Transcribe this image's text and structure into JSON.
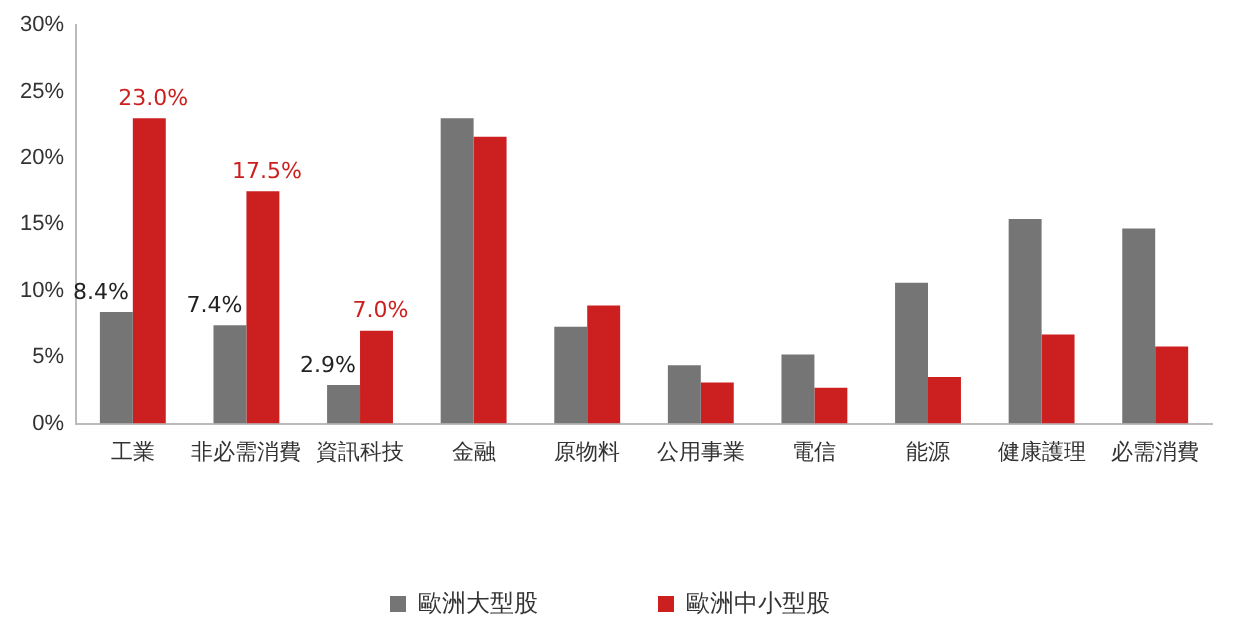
{
  "chart_data": {
    "type": "bar",
    "categories": [
      "工業",
      "非必需消費",
      "資訊科技",
      "金融",
      "原物料",
      "公用事業",
      "電信",
      "能源",
      "健康護理",
      "必需消費"
    ],
    "series": [
      {
        "name": "歐洲大型股",
        "color": "#757575",
        "values": [
          8.4,
          7.4,
          2.9,
          23.0,
          7.3,
          4.4,
          5.2,
          10.6,
          15.4,
          14.7
        ],
        "value_labels": [
          "8.4%",
          "7.4%",
          "2.9%",
          null,
          null,
          null,
          null,
          null,
          null,
          null
        ]
      },
      {
        "name": "歐洲中小型股",
        "color": "#cc2020",
        "values": [
          23.0,
          17.5,
          7.0,
          21.6,
          8.9,
          3.1,
          2.7,
          3.5,
          6.7,
          5.8
        ],
        "value_labels": [
          "23.0%",
          "17.5%",
          "7.0%",
          null,
          null,
          null,
          null,
          null,
          null,
          null
        ]
      }
    ],
    "ylim": [
      0,
      30
    ],
    "yticks": [
      {
        "value": 0,
        "label": "0%"
      },
      {
        "value": 5,
        "label": "5%"
      },
      {
        "value": 10,
        "label": "10%"
      },
      {
        "value": 15,
        "label": "15%"
      },
      {
        "value": 20,
        "label": "20%"
      },
      {
        "value": 25,
        "label": "25%"
      },
      {
        "value": 30,
        "label": "30%"
      }
    ],
    "grid": false,
    "legend": "bottom"
  }
}
